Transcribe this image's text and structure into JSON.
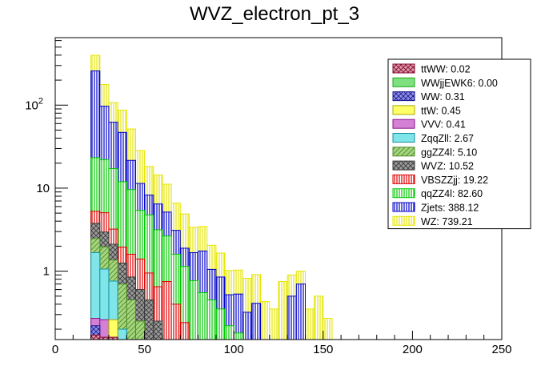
{
  "chart_data": {
    "type": "bar",
    "subtype": "stacked-histogram",
    "title": "WVZ_electron_pt_3",
    "xlabel": "",
    "ylabel": "",
    "xlim": [
      0,
      250
    ],
    "ylim_log": [
      0.15,
      650
    ],
    "yscale": "log",
    "bin_width": 5,
    "x_ticks": [
      "0",
      "50",
      "100",
      "150",
      "200",
      "250"
    ],
    "y_ticks": [
      {
        "value": 1,
        "base": "1",
        "exp": ""
      },
      {
        "value": 10,
        "base": "10",
        "exp": ""
      },
      {
        "value": 100,
        "base": "10",
        "exp": "2"
      }
    ],
    "legend": [
      {
        "name": "ttWW",
        "text": "ttWW: 0.02",
        "fill": "#d99aa8",
        "line": "#8a0a32",
        "pattern": "cross"
      },
      {
        "name": "WWjjEWK6",
        "text": "WWjjEWK6: 0.00",
        "fill": "#7fe07f",
        "line": "#18a818",
        "pattern": "solid"
      },
      {
        "name": "WW",
        "text": "WW: 0.31",
        "fill": "#8f8fe8",
        "line": "#18188a",
        "pattern": "cross"
      },
      {
        "name": "ttW",
        "text": "ttW: 0.45",
        "fill": "#ffff66",
        "line": "#a8a800",
        "pattern": "solid"
      },
      {
        "name": "VVV",
        "text": "VVV: 0.41",
        "fill": "#d480d4",
        "line": "#8a168a",
        "pattern": "solid"
      },
      {
        "name": "ZqqZll",
        "text": "ZqqZll: 2.67",
        "fill": "#7fe5e8",
        "line": "#1890a0",
        "pattern": "solid"
      },
      {
        "name": "ggZZ4l",
        "text": "ggZZ4l: 5.10",
        "fill": "#a6d67f",
        "line": "#4f8a28",
        "pattern": "diag"
      },
      {
        "name": "WVZ",
        "text": "WVZ: 10.52",
        "fill": "#9b9b9b",
        "line": "#3a3a3a",
        "pattern": "cross"
      },
      {
        "name": "VBSZZjj",
        "text": "VBSZZjj: 19.22",
        "fill": "#ffffff",
        "line": "#e00000",
        "pattern": "vert"
      },
      {
        "name": "qqZZ4l",
        "text": "qqZZ4l: 82.60",
        "fill": "#ffffff",
        "line": "#00c800",
        "pattern": "vert"
      },
      {
        "name": "Zjets",
        "text": "Zjets: 388.12",
        "fill": "#ffffff",
        "line": "#0000c8",
        "pattern": "vert"
      },
      {
        "name": "WZ",
        "text": "WZ: 739.21",
        "fill": "#ffffff",
        "line": "#e6e600",
        "pattern": "vert"
      }
    ],
    "bins_low_edge": [
      20,
      25,
      30,
      35,
      40,
      45,
      50,
      55,
      60,
      65,
      70,
      75,
      80,
      85,
      90,
      95,
      100,
      105,
      110,
      115,
      120,
      125,
      130,
      135,
      140,
      145,
      150,
      155,
      160,
      165,
      170,
      175,
      180,
      185,
      190,
      195,
      200,
      205,
      210
    ],
    "series": [
      {
        "name": "ttWW",
        "values": [
          0.17,
          0.16,
          0.16,
          0,
          0,
          0,
          0,
          0,
          0,
          0,
          0,
          0,
          0,
          0,
          0,
          0,
          0,
          0,
          0,
          0,
          0,
          0,
          0,
          0,
          0,
          0,
          0,
          0,
          0,
          0,
          0,
          0,
          0,
          0,
          0,
          0,
          0,
          0,
          0
        ]
      },
      {
        "name": "WW",
        "values": [
          0.05,
          0,
          0,
          0,
          0,
          0,
          0,
          0,
          0,
          0,
          0,
          0,
          0,
          0,
          0,
          0,
          0,
          0,
          0,
          0,
          0,
          0,
          0,
          0,
          0,
          0,
          0,
          0,
          0,
          0,
          0,
          0,
          0,
          0,
          0,
          0,
          0,
          0,
          0
        ]
      },
      {
        "name": "ttW",
        "values": [
          0,
          0,
          0.1,
          0,
          0,
          0,
          0,
          0,
          0,
          0,
          0,
          0,
          0,
          0,
          0,
          0,
          0,
          0,
          0,
          0,
          0,
          0,
          0,
          0,
          0,
          0,
          0,
          0,
          0,
          0,
          0,
          0,
          0,
          0,
          0,
          0,
          0,
          0,
          0
        ]
      },
      {
        "name": "VVV",
        "values": [
          0.05,
          0.1,
          0,
          0,
          0,
          0,
          0,
          0,
          0,
          0,
          0,
          0,
          0,
          0,
          0,
          0,
          0,
          0,
          0,
          0,
          0,
          0,
          0,
          0,
          0,
          0,
          0,
          0,
          0,
          0,
          0,
          0,
          0,
          0,
          0,
          0,
          0,
          0,
          0
        ]
      },
      {
        "name": "ZqqZll",
        "values": [
          1.4,
          0.8,
          0.5,
          0.2,
          0,
          0,
          0,
          0,
          0,
          0,
          0,
          0,
          0,
          0,
          0,
          0,
          0,
          0,
          0,
          0,
          0,
          0,
          0,
          0,
          0,
          0,
          0,
          0,
          0,
          0,
          0,
          0,
          0,
          0,
          0,
          0,
          0,
          0,
          0
        ]
      },
      {
        "name": "ggZZ4l",
        "values": [
          0.8,
          0.9,
          0.6,
          0.5,
          0.45,
          0.25,
          0.15,
          0.05,
          0,
          0,
          0,
          0,
          0,
          0,
          0,
          0,
          0,
          0,
          0,
          0,
          0,
          0,
          0,
          0,
          0,
          0,
          0,
          0,
          0,
          0,
          0,
          0,
          0,
          0,
          0,
          0,
          0,
          0,
          0
        ]
      },
      {
        "name": "WVZ",
        "values": [
          1.3,
          1.0,
          0.75,
          0.55,
          0.4,
          0.35,
          0.3,
          0.2,
          0.15,
          0.1,
          0.04,
          0.02,
          0,
          0,
          0,
          0,
          0,
          0,
          0,
          0,
          0,
          0,
          0,
          0,
          0,
          0,
          0,
          0,
          0,
          0,
          0,
          0,
          0,
          0,
          0,
          0,
          0,
          0,
          0
        ]
      },
      {
        "name": "VBSZZjj",
        "values": [
          1.5,
          2.1,
          1.1,
          0.7,
          0.75,
          0.8,
          0.5,
          0.4,
          0.6,
          0.3,
          0.2,
          0.1,
          0.15,
          0.1,
          0.05,
          0,
          0,
          0,
          0,
          0,
          0,
          0,
          0,
          0,
          0,
          0,
          0,
          0,
          0,
          0,
          0,
          0,
          0,
          0,
          0,
          0,
          0,
          0,
          0
        ]
      },
      {
        "name": "qqZZ4l",
        "values": [
          18,
          17,
          14,
          10,
          8,
          4,
          3.8,
          2.5,
          1.9,
          1.2,
          0.9,
          0.65,
          0.4,
          0.35,
          0.3,
          0.22,
          0.18,
          0.12,
          0.06,
          0.03,
          0,
          0,
          0,
          0,
          0,
          0,
          0,
          0,
          0,
          0,
          0,
          0,
          0,
          0,
          0,
          0,
          0,
          0,
          0
        ]
      },
      {
        "name": "Zjets",
        "values": [
          235,
          75,
          45,
          35,
          12,
          6,
          3.5,
          3.3,
          2.5,
          1.5,
          0.75,
          0.9,
          1.2,
          0.6,
          0.5,
          0.3,
          0.35,
          0.2,
          0.35,
          0,
          0,
          0,
          0.5,
          0.7,
          0,
          0.15,
          0.12,
          0,
          0,
          0,
          0,
          0,
          0,
          0,
          0,
          0,
          0,
          0,
          0
        ]
      },
      {
        "name": "WZ",
        "values": [
          140,
          80,
          45,
          40,
          30,
          17,
          10,
          8,
          6,
          3.5,
          3,
          1.7,
          1.7,
          1,
          0.8,
          0.5,
          0.5,
          0.5,
          0.5,
          0.4,
          0.35,
          0.75,
          0.4,
          0.3,
          0.35,
          0.35,
          0.15,
          0.1,
          0.15,
          0,
          0.15,
          0.15,
          0.15,
          0,
          0,
          0,
          0,
          0,
          0.15
        ]
      }
    ]
  }
}
